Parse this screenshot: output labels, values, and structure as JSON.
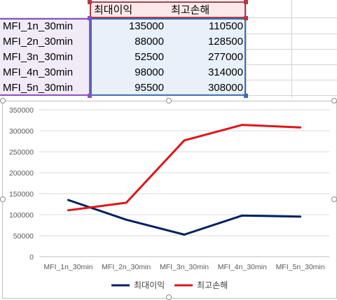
{
  "sheet": {
    "header": [
      "최대이익",
      "최고손해"
    ],
    "rows": [
      {
        "name": "MFI_1n_30min",
        "profit": "135000",
        "loss": "110500"
      },
      {
        "name": "MFI_2n_30min",
        "profit": "88000",
        "loss": "128500"
      },
      {
        "name": "MFI_3n_30min",
        "profit": "52500",
        "loss": "277000"
      },
      {
        "name": "MFI_4n_30min",
        "profit": "98000",
        "loss": "314000"
      },
      {
        "name": "MFI_5n_30min",
        "profit": "95500",
        "loss": "308000"
      }
    ]
  },
  "chart_data": {
    "type": "line",
    "categories": [
      "MFI_1n_30min",
      "MFI_2n_30min",
      "MFI_3n_30min",
      "MFI_4n_30min",
      "MFI_5n_30min"
    ],
    "series": [
      {
        "name": "최대이익",
        "color": "#002060",
        "values": [
          135000,
          88000,
          52500,
          98000,
          95500
        ]
      },
      {
        "name": "최고손해",
        "color": "#e0141b",
        "values": [
          110500,
          128500,
          277000,
          314000,
          308000
        ]
      }
    ],
    "ylim": [
      0,
      350000
    ],
    "yticks": [
      "0",
      "50000",
      "100000",
      "150000",
      "200000",
      "250000",
      "300000",
      "350000"
    ],
    "grid": true,
    "legend": "bottom"
  }
}
